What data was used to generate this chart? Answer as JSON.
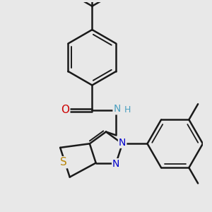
{
  "background_color": "#e8e8e8",
  "bond_color": "#1a1a1a",
  "bond_width": 1.8,
  "figsize": [
    3.0,
    3.0
  ],
  "dpi": 100,
  "xlim": [
    -2.5,
    4.5
  ],
  "ylim": [
    -3.0,
    4.5
  ]
}
